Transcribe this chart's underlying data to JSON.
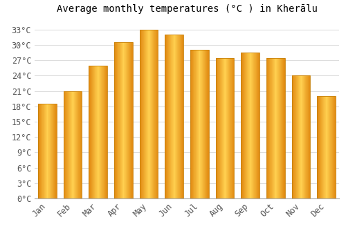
{
  "months": [
    "Jan",
    "Feb",
    "Mar",
    "Apr",
    "May",
    "Jun",
    "Jul",
    "Aug",
    "Sep",
    "Oct",
    "Nov",
    "Dec"
  ],
  "values": [
    18.5,
    21.0,
    26.0,
    30.5,
    33.0,
    32.0,
    29.0,
    27.5,
    28.5,
    27.5,
    24.0,
    20.0
  ],
  "bar_color_main": "#FFA500",
  "bar_color_light": "#FFD060",
  "bar_color_dark": "#E08000",
  "bar_edge_color": "#C8820A",
  "title": "Average monthly temperatures (°C ) in Kherālu",
  "ylim": [
    0,
    35
  ],
  "yticks": [
    0,
    3,
    6,
    9,
    12,
    15,
    18,
    21,
    24,
    27,
    30,
    33
  ],
  "ytick_labels": [
    "0°C",
    "3°C",
    "6°C",
    "9°C",
    "12°C",
    "15°C",
    "18°C",
    "21°C",
    "24°C",
    "27°C",
    "30°C",
    "33°C"
  ],
  "background_color": "#ffffff",
  "grid_color": "#dddddd",
  "title_fontsize": 10,
  "tick_fontsize": 8.5
}
